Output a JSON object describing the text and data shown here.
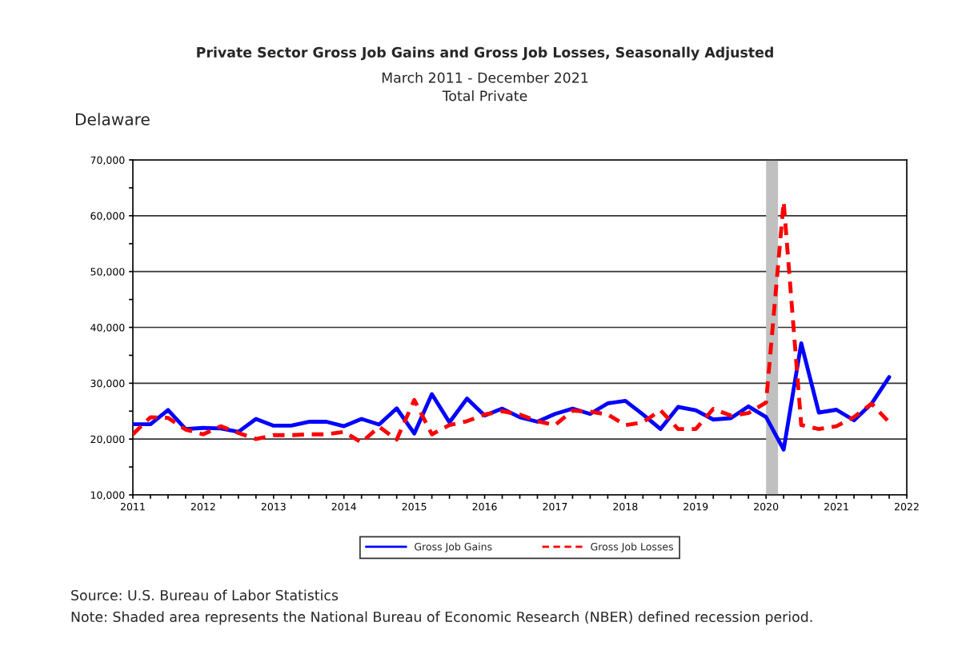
{
  "chart_data": {
    "type": "line",
    "title": "Private Sector Gross Job Gains and Gross Job Losses, Seasonally Adjusted",
    "subtitle": "March 2011 - December 2021\nTotal Private",
    "annotations": [
      "Delaware",
      "Source: U.S. Bureau of Labor Statistics",
      "Note: Shaded area represents the National Bureau of Economic Research (NBER) defined recession period."
    ],
    "x": [
      2011.0,
      2011.25,
      2011.5,
      2011.75,
      2012.0,
      2012.25,
      2012.5,
      2012.75,
      2013.0,
      2013.25,
      2013.5,
      2013.75,
      2014.0,
      2014.25,
      2014.5,
      2014.75,
      2015.0,
      2015.25,
      2015.5,
      2015.75,
      2016.0,
      2016.25,
      2016.5,
      2016.75,
      2017.0,
      2017.25,
      2017.5,
      2017.75,
      2018.0,
      2018.25,
      2018.5,
      2018.75,
      2019.0,
      2019.25,
      2019.5,
      2019.75,
      2020.0,
      2020.25,
      2020.5,
      2020.75,
      2021.0,
      2021.25,
      2021.5,
      2021.75
    ],
    "series": [
      {
        "name": "Gross Job Gains",
        "color": "#0000ff",
        "line_style": "solid",
        "values": [
          22650,
          22650,
          25200,
          21800,
          22000,
          21900,
          21300,
          23600,
          22400,
          22400,
          23100,
          23100,
          22300,
          23600,
          22600,
          25500,
          21000,
          28050,
          23000,
          27250,
          24200,
          25450,
          23900,
          23100,
          24500,
          25450,
          24500,
          26400,
          26850,
          24400,
          21800,
          25750,
          25150,
          23500,
          23750,
          25850,
          23950,
          18100,
          37150,
          24750,
          25250,
          23350,
          26350,
          31100
        ]
      },
      {
        "name": "Gross Job Losses",
        "color": "#ff0000",
        "line_style": "dashed",
        "values": [
          20850,
          23900,
          23800,
          21700,
          20850,
          22300,
          21100,
          20000,
          20700,
          20700,
          20850,
          20850,
          21300,
          19400,
          22200,
          19900,
          27000,
          20850,
          22500,
          23200,
          24400,
          25000,
          24400,
          23200,
          22500,
          25100,
          24900,
          24400,
          22500,
          23000,
          25150,
          21800,
          21800,
          25400,
          24200,
          24650,
          26550,
          62500,
          22500,
          21800,
          22300,
          23950,
          26350,
          23000
        ]
      }
    ],
    "xlim": [
      2011,
      2022
    ],
    "xticks": [
      2011,
      {
        "value": 2011.25,
        "label": null
      },
      {
        "value": 2011.5,
        "label": null
      },
      {
        "value": 2011.75,
        "label": null
      },
      2012,
      {
        "value": 2012.25,
        "label": null
      },
      {
        "value": 2012.5,
        "label": null
      },
      {
        "value": 2012.75,
        "label": null
      },
      2013,
      {
        "value": 2013.25,
        "label": null
      },
      {
        "value": 2013.5,
        "label": null
      },
      {
        "value": 2013.75,
        "label": null
      },
      2014,
      {
        "value": 2014.25,
        "label": null
      },
      {
        "value": 2014.5,
        "label": null
      },
      {
        "value": 2014.75,
        "label": null
      },
      2015,
      {
        "value": 2015.25,
        "label": null
      },
      {
        "value": 2015.5,
        "label": null
      },
      {
        "value": 2015.75,
        "label": null
      },
      2016,
      {
        "value": 2016.25,
        "label": null
      },
      {
        "value": 2016.5,
        "label": null
      },
      {
        "value": 2016.75,
        "label": null
      },
      2017,
      {
        "value": 2017.25,
        "label": null
      },
      {
        "value": 2017.5,
        "label": null
      },
      {
        "value": 2017.75,
        "label": null
      },
      2018,
      {
        "value": 2018.25,
        "label": null
      },
      {
        "value": 2018.5,
        "label": null
      },
      {
        "value": 2018.75,
        "label": null
      },
      2019,
      {
        "value": 2019.25,
        "label": null
      },
      {
        "value": 2019.5,
        "label": null
      },
      {
        "value": 2019.75,
        "label": null
      },
      2020,
      {
        "value": 2020.25,
        "label": null
      },
      {
        "value": 2020.5,
        "label": null
      },
      {
        "value": 2020.75,
        "label": null
      },
      2021,
      {
        "value": 2021.25,
        "label": null
      },
      {
        "value": 2021.5,
        "label": null
      },
      {
        "value": 2021.75,
        "label": null
      },
      2022
    ],
    "ylim": [
      10000,
      70000
    ],
    "yticks": [
      {
        "value": 10000,
        "label": "10,000"
      },
      {
        "value": 15000,
        "label": null
      },
      {
        "value": 20000,
        "label": "20,000"
      },
      {
        "value": 25000,
        "label": null
      },
      {
        "value": 30000,
        "label": "30,000"
      },
      {
        "value": 35000,
        "label": null
      },
      {
        "value": 40000,
        "label": "40,000"
      },
      {
        "value": 45000,
        "label": null
      },
      {
        "value": 50000,
        "label": "50,000"
      },
      {
        "value": 55000,
        "label": null
      },
      {
        "value": 60000,
        "label": "60,000"
      },
      {
        "value": 65000,
        "label": null
      },
      {
        "value": 70000,
        "label": "70,000"
      }
    ],
    "bands": [
      {
        "axis": "x",
        "from": 2020.0,
        "to": 2020.17,
        "color": "#c0c0c0"
      }
    ],
    "grid": "y",
    "legend": "bottom"
  }
}
